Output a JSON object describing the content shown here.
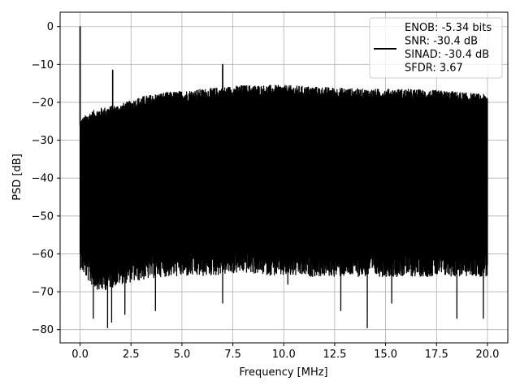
{
  "chart_data": {
    "type": "line",
    "title": "",
    "xlabel": "Frequency [MHz]",
    "ylabel": "PSD [dB]",
    "xlim": [
      -0.98,
      21.0
    ],
    "ylim": [
      -83.5,
      3.8
    ],
    "xticks": [
      0.0,
      2.5,
      5.0,
      7.5,
      10.0,
      12.5,
      15.0,
      17.5,
      20.0
    ],
    "xtick_labels": [
      "0.0",
      "2.5",
      "5.0",
      "7.5",
      "10.0",
      "12.5",
      "15.0",
      "17.5",
      "20.0"
    ],
    "yticks": [
      0,
      -10,
      -20,
      -30,
      -40,
      -50,
      -60,
      -70,
      -80
    ],
    "ytick_labels": [
      "0",
      "−10",
      "−20",
      "−30",
      "−40",
      "−50",
      "−60",
      "−70",
      "−80"
    ],
    "grid": true,
    "legend_placement": "top-right",
    "series_color": "#000000",
    "series": [
      {
        "legend_lines": [
          "ENOB: -5.34 bits",
          "SNR: -30.4 dB",
          "SINAD: -30.4 dB",
          "SFDR: 3.67"
        ],
        "x_range": [
          0.0,
          20.0
        ],
        "noise_floor_upper": [
          [
            0.0,
            -26
          ],
          [
            0.5,
            -24
          ],
          [
            1.0,
            -23
          ],
          [
            2.0,
            -22
          ],
          [
            3.0,
            -20
          ],
          [
            4.0,
            -19
          ],
          [
            6.0,
            -18
          ],
          [
            8.0,
            -17
          ],
          [
            10.0,
            -17
          ],
          [
            12.0,
            -17.5
          ],
          [
            14.0,
            -18
          ],
          [
            16.0,
            -18
          ],
          [
            18.0,
            -18.5
          ],
          [
            20.0,
            -19.5
          ]
        ],
        "noise_floor_lower": [
          [
            0.0,
            -58
          ],
          [
            0.5,
            -62
          ],
          [
            1.0,
            -64
          ],
          [
            2.0,
            -62
          ],
          [
            4.0,
            -60
          ],
          [
            6.0,
            -60
          ],
          [
            8.0,
            -59
          ],
          [
            10.0,
            -60
          ],
          [
            12.0,
            -60
          ],
          [
            14.0,
            -60
          ],
          [
            16.0,
            -60
          ],
          [
            18.0,
            -60
          ],
          [
            20.0,
            -60
          ]
        ],
        "peaks": [
          {
            "x": 0.0,
            "y": 0
          },
          {
            "x": 1.6,
            "y": -11.5
          },
          {
            "x": 7.0,
            "y": -10
          }
        ],
        "dips": [
          {
            "x": 0.65,
            "y": -77
          },
          {
            "x": 1.35,
            "y": -79.5
          },
          {
            "x": 1.55,
            "y": -78
          },
          {
            "x": 2.2,
            "y": -76
          },
          {
            "x": 3.7,
            "y": -75
          },
          {
            "x": 7.0,
            "y": -73
          },
          {
            "x": 10.2,
            "y": -68
          },
          {
            "x": 12.8,
            "y": -75
          },
          {
            "x": 14.1,
            "y": -79.5
          },
          {
            "x": 15.3,
            "y": -73
          },
          {
            "x": 18.5,
            "y": -77
          },
          {
            "x": 19.8,
            "y": -77
          }
        ]
      }
    ]
  }
}
